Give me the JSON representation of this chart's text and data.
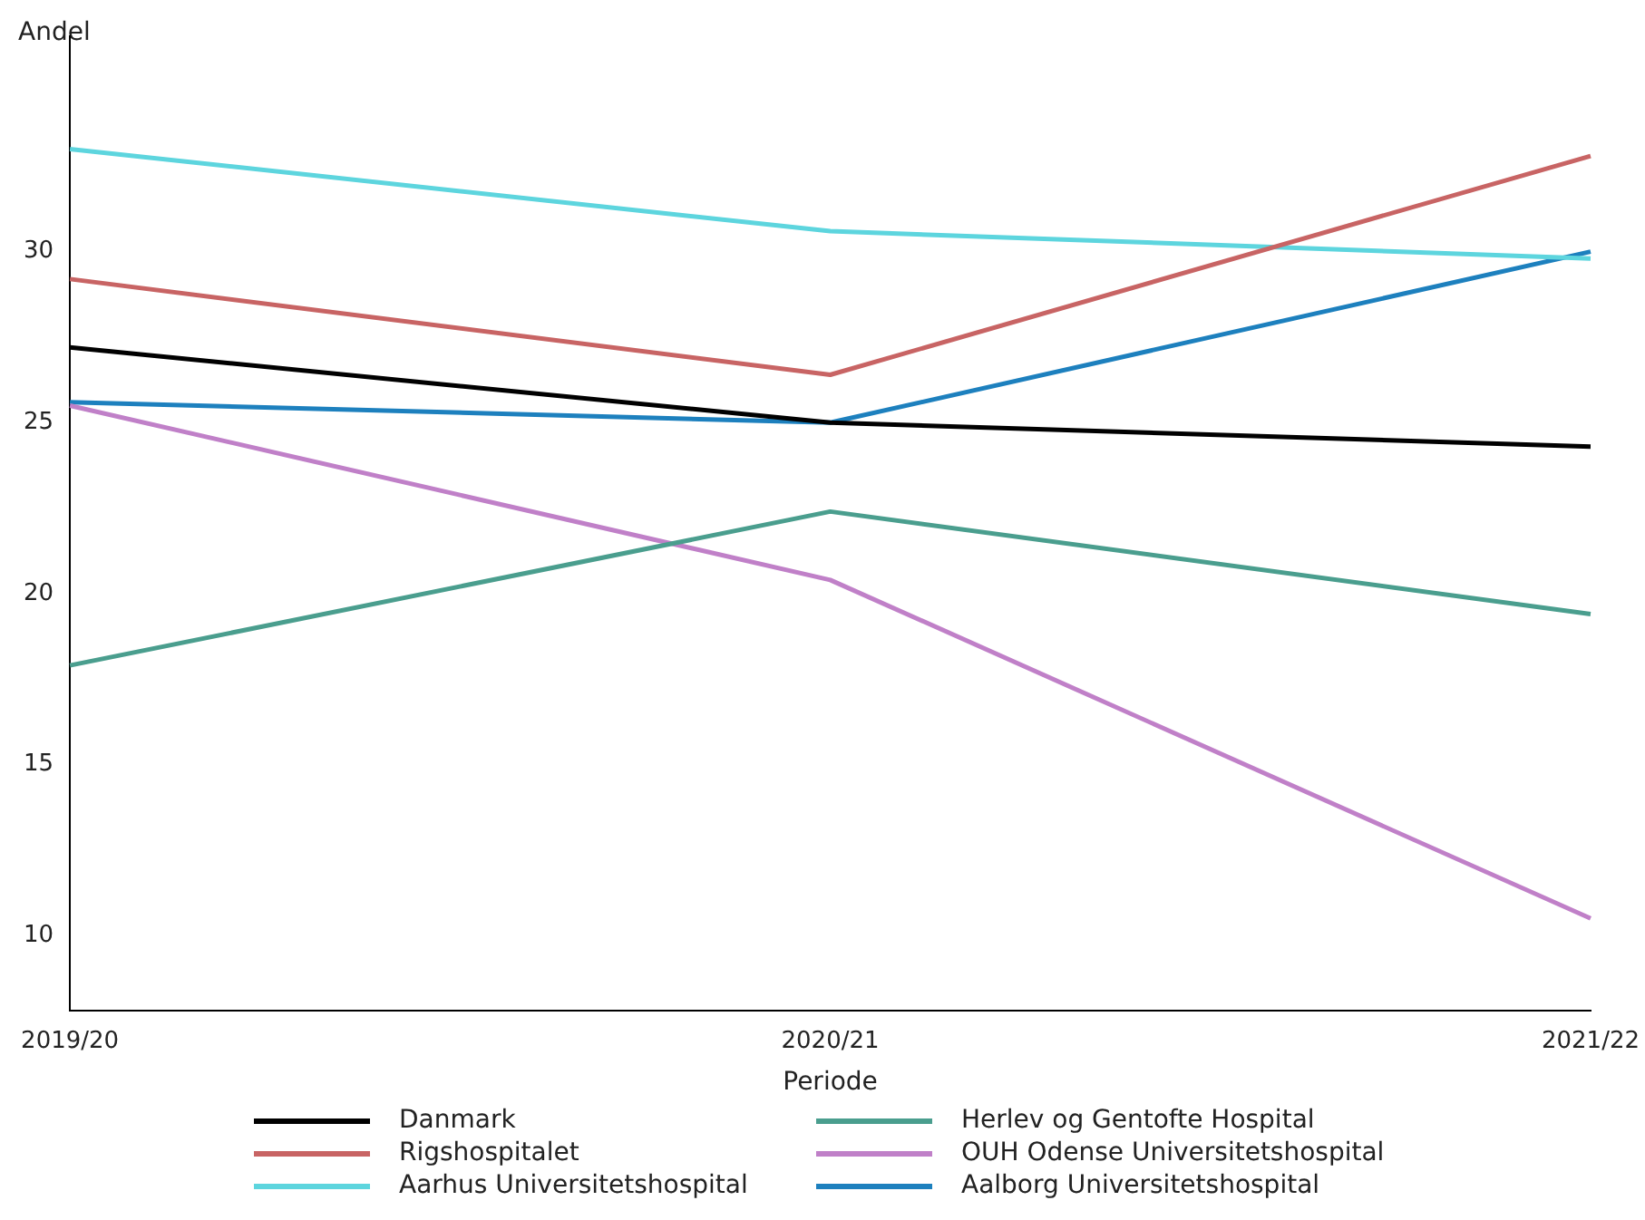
{
  "chart_data": {
    "type": "line",
    "ylabel": "Andel",
    "xlabel": "Periode",
    "categories": [
      "2019/20",
      "2020/21",
      "2021/22"
    ],
    "ylim": [
      7.8,
      36.3
    ],
    "yticks": [
      10,
      15,
      20,
      25,
      30
    ],
    "grid": false,
    "legend": "bottom",
    "marker": "none",
    "line_style": "solid",
    "series": [
      {
        "name": "Danmark",
        "color": "#000000",
        "values": [
          27.2,
          25.0,
          24.3
        ]
      },
      {
        "name": "Herlev og Gentofte Hospital",
        "color": "#4a9e8e",
        "values": [
          17.9,
          22.4,
          19.4
        ]
      },
      {
        "name": "Rigshospitalet",
        "color": "#c86464",
        "values": [
          29.2,
          26.4,
          32.8
        ]
      },
      {
        "name": "OUH Odense Universitetshospital",
        "color": "#c080c8",
        "values": [
          25.5,
          20.4,
          10.5
        ]
      },
      {
        "name": "Aarhus Universitetshospital",
        "color": "#5dd5de",
        "values": [
          33.0,
          30.6,
          29.8
        ]
      },
      {
        "name": "Aalborg Universitetshospital",
        "color": "#1d80be",
        "values": [
          25.6,
          25.0,
          30.0
        ]
      }
    ]
  }
}
